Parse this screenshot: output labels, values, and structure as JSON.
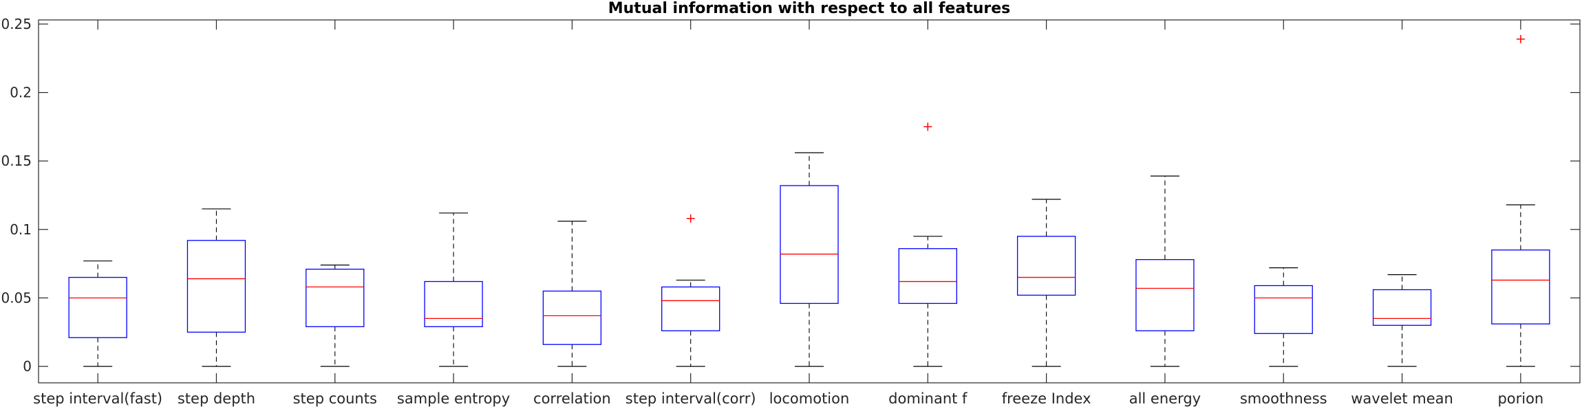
{
  "chart_data": {
    "type": "box",
    "title": "Mutual information with respect to all features",
    "xlabel": "",
    "ylabel": "",
    "ylim": [
      -0.012,
      0.253
    ],
    "yticks": [
      0,
      0.05,
      0.1,
      0.15,
      0.2,
      0.25
    ],
    "ytick_labels": [
      "0",
      "0.05",
      "0.1",
      "0.15",
      "0.2",
      "0.25"
    ],
    "grid": false,
    "colors": {
      "box": "#0000ff",
      "median": "#ff0000",
      "whisker": "#000000",
      "outlier": "#ff0000",
      "axes": "#262626"
    },
    "categories": [
      "step interval(fast)",
      "step depth",
      "step counts",
      "sample entropy",
      "correlation",
      "step interval(corr)",
      "locomotion",
      "dominant f",
      "freeze Index",
      "all energy",
      "smoothness",
      "wavelet mean",
      "porion"
    ],
    "boxes": [
      {
        "whisker_low": 0,
        "q1": 0.021,
        "median": 0.05,
        "q3": 0.065,
        "whisker_high": 0.077,
        "outliers": []
      },
      {
        "whisker_low": 0,
        "q1": 0.025,
        "median": 0.064,
        "q3": 0.092,
        "whisker_high": 0.115,
        "outliers": []
      },
      {
        "whisker_low": 0,
        "q1": 0.029,
        "median": 0.058,
        "q3": 0.071,
        "whisker_high": 0.074,
        "outliers": []
      },
      {
        "whisker_low": 0,
        "q1": 0.029,
        "median": 0.035,
        "q3": 0.062,
        "whisker_high": 0.112,
        "outliers": []
      },
      {
        "whisker_low": 0,
        "q1": 0.016,
        "median": 0.037,
        "q3": 0.055,
        "whisker_high": 0.106,
        "outliers": []
      },
      {
        "whisker_low": 0,
        "q1": 0.026,
        "median": 0.048,
        "q3": 0.058,
        "whisker_high": 0.063,
        "outliers": [
          0.108
        ]
      },
      {
        "whisker_low": 0,
        "q1": 0.046,
        "median": 0.082,
        "q3": 0.132,
        "whisker_high": 0.156,
        "outliers": []
      },
      {
        "whisker_low": 0,
        "q1": 0.046,
        "median": 0.062,
        "q3": 0.086,
        "whisker_high": 0.095,
        "outliers": [
          0.175
        ]
      },
      {
        "whisker_low": 0,
        "q1": 0.052,
        "median": 0.065,
        "q3": 0.095,
        "whisker_high": 0.122,
        "outliers": []
      },
      {
        "whisker_low": 0,
        "q1": 0.026,
        "median": 0.057,
        "q3": 0.078,
        "whisker_high": 0.139,
        "outliers": []
      },
      {
        "whisker_low": 0,
        "q1": 0.024,
        "median": 0.05,
        "q3": 0.059,
        "whisker_high": 0.072,
        "outliers": []
      },
      {
        "whisker_low": 0,
        "q1": 0.03,
        "median": 0.035,
        "q3": 0.056,
        "whisker_high": 0.067,
        "outliers": []
      },
      {
        "whisker_low": 0,
        "q1": 0.031,
        "median": 0.063,
        "q3": 0.085,
        "whisker_high": 0.118,
        "outliers": [
          0.239
        ]
      }
    ]
  }
}
